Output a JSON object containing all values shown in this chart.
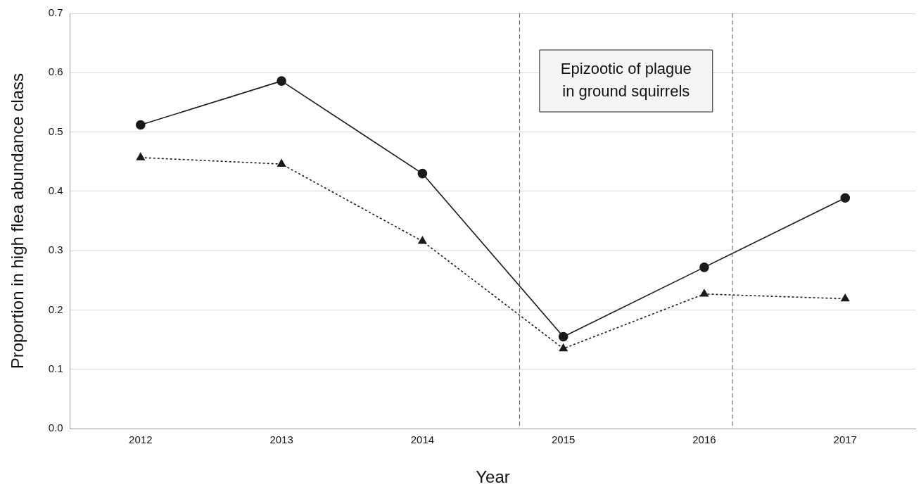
{
  "chart_data": {
    "type": "line",
    "xlabel": "Year",
    "ylabel": "Proportion in high flea abundance class",
    "x": [
      2012,
      2013,
      2014,
      2015,
      2016,
      2017
    ],
    "xlim": [
      2011.5,
      2017.5
    ],
    "xticks": [
      2012,
      2013,
      2014,
      2015,
      2016,
      2017
    ],
    "ylim": [
      0,
      0.7
    ],
    "yticks": [
      {
        "value": 0,
        "label": "0.0"
      },
      {
        "value": 0.1,
        "label": "0.1"
      },
      {
        "value": 0.2,
        "label": "0.2"
      },
      {
        "value": 0.3,
        "label": "0.3"
      },
      {
        "value": 0.4,
        "label": "0.4"
      },
      {
        "value": 0.5,
        "label": "0.5"
      },
      {
        "value": 0.6,
        "label": "0.6"
      },
      {
        "value": 0.7,
        "label": "0.7"
      }
    ],
    "series": [
      {
        "color": "#1a1a1a",
        "marker": "circle",
        "line_style": "solid",
        "values": [
          0.512,
          0.586,
          0.43,
          0.155,
          0.272,
          0.389
        ]
      },
      {
        "color": "#1a1a1a",
        "marker": "triangle",
        "line_style": "dotted",
        "values": [
          0.457,
          0.446,
          0.316,
          0.135,
          0.227,
          0.219
        ]
      }
    ],
    "ref_lines": [
      {
        "axis": "x",
        "value": 2014.69,
        "color": "#555555",
        "line_style": "dashed"
      },
      {
        "axis": "x",
        "value": 2016.2,
        "color": "#555555",
        "line_style": "dashed"
      }
    ],
    "annotations": [
      "Epizootic of plague\nin ground squirrels"
    ],
    "grid": "y",
    "legend": false
  }
}
